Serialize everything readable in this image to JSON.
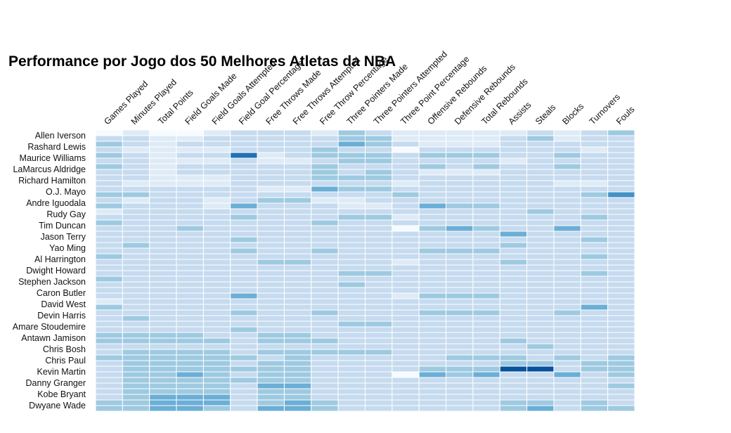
{
  "chart_data": {
    "type": "heatmap",
    "title": "Performance por Jogo dos 50 Melhores Atletas da NBA",
    "color_scale": [
      "#f7fbff",
      "#deebf7",
      "#c6dbef",
      "#9ecae1",
      "#6baed6",
      "#4292c6",
      "#2171b5",
      "#08519c"
    ],
    "columns": [
      "Games Played",
      "Minutes Played",
      "Total Points",
      "Field Goals Made",
      "Field Goals Attempted",
      "Field Goal Percentage",
      "Free Throws Made",
      "Free Throws Attempted",
      "Free Throw Percentage",
      "Three Pointers Made",
      "Three Pointers Attempted",
      "Three Point Percentage",
      "Offensive Rebounds",
      "Defensive Rebounds",
      "Total Rebounds",
      "Assists",
      "Steals",
      "Blocks",
      "Turnovers",
      "Fouls"
    ],
    "visible_row_labels": [
      "Allen Iverson",
      "Rashard Lewis",
      "Maurice Williams",
      "LaMarcus Aldridge",
      "Richard Hamilton",
      "O.J. Mayo",
      "Andre Iguodala",
      "Rudy Gay",
      "Tim Duncan",
      "Jason Terry",
      "Yao Ming",
      "Al Harrington",
      "Dwight Howard",
      "Stephen Jackson",
      "Caron Butler",
      "David West",
      "Devin Harris",
      "Amare Stoudemire",
      "Antawn Jamison",
      "Chris Bosh",
      "Chris Paul",
      "Kevin Martin",
      "Danny Granger",
      "Kobe Bryant",
      "Dwyane Wade"
    ],
    "row_count": 50,
    "values": [
      [
        1,
        2,
        1,
        1,
        2,
        3,
        3,
        3,
        2,
        4,
        3,
        2,
        2,
        2,
        2,
        2,
        3,
        2,
        3,
        4
      ],
      [
        3,
        3,
        2,
        2,
        3,
        3,
        3,
        3,
        3,
        4,
        4,
        2,
        2,
        2,
        2,
        3,
        4,
        2,
        3,
        3
      ],
      [
        4,
        3,
        2,
        3,
        3,
        3,
        3,
        3,
        3,
        5,
        4,
        3,
        2,
        2,
        2,
        3,
        3,
        3,
        3,
        3
      ],
      [
        3,
        2,
        2,
        2,
        2,
        3,
        3,
        3,
        4,
        3,
        3,
        1,
        3,
        3,
        3,
        3,
        3,
        3,
        2,
        3
      ],
      [
        4,
        3,
        2,
        3,
        3,
        7,
        2,
        3,
        4,
        4,
        4,
        3,
        4,
        4,
        4,
        3,
        3,
        4,
        3,
        3
      ],
      [
        3,
        3,
        2,
        2,
        2,
        3,
        2,
        2,
        3,
        4,
        4,
        3,
        3,
        3,
        3,
        2,
        3,
        3,
        3,
        3
      ],
      [
        4,
        3,
        2,
        3,
        3,
        3,
        3,
        3,
        4,
        3,
        3,
        3,
        4,
        3,
        4,
        3,
        3,
        4,
        3,
        3
      ],
      [
        3,
        3,
        2,
        3,
        3,
        3,
        3,
        3,
        4,
        3,
        4,
        3,
        2,
        2,
        2,
        3,
        3,
        3,
        3,
        3
      ],
      [
        3,
        3,
        2,
        2,
        2,
        3,
        3,
        3,
        4,
        4,
        4,
        3,
        3,
        3,
        3,
        3,
        3,
        3,
        3,
        3
      ],
      [
        3,
        2,
        2,
        2,
        2,
        3,
        3,
        3,
        3,
        3,
        3,
        2,
        3,
        3,
        3,
        3,
        3,
        2,
        2,
        3
      ],
      [
        3,
        3,
        3,
        3,
        3,
        3,
        2,
        2,
        5,
        4,
        4,
        3,
        3,
        3,
        3,
        3,
        3,
        3,
        3,
        3
      ],
      [
        4,
        4,
        3,
        3,
        3,
        3,
        3,
        3,
        3,
        3,
        3,
        4,
        3,
        3,
        3,
        3,
        3,
        3,
        4,
        6
      ],
      [
        3,
        2,
        3,
        3,
        2,
        3,
        4,
        4,
        2,
        2,
        3,
        3,
        3,
        3,
        3,
        3,
        3,
        3,
        3,
        3
      ],
      [
        4,
        3,
        3,
        3,
        2,
        5,
        3,
        3,
        3,
        2,
        2,
        3,
        5,
        4,
        4,
        3,
        3,
        3,
        3,
        3
      ],
      [
        2,
        3,
        3,
        3,
        3,
        3,
        3,
        3,
        3,
        3,
        3,
        3,
        3,
        3,
        3,
        3,
        4,
        3,
        3,
        3
      ],
      [
        3,
        3,
        3,
        3,
        3,
        4,
        3,
        3,
        3,
        4,
        4,
        2,
        3,
        3,
        3,
        3,
        3,
        3,
        4,
        3
      ],
      [
        4,
        3,
        3,
        3,
        3,
        3,
        3,
        3,
        4,
        3,
        3,
        3,
        3,
        3,
        3,
        3,
        3,
        3,
        3,
        3
      ],
      [
        3,
        3,
        3,
        4,
        3,
        3,
        3,
        3,
        3,
        3,
        3,
        1,
        4,
        5,
        4,
        3,
        3,
        5,
        3,
        3
      ],
      [
        3,
        3,
        3,
        3,
        3,
        3,
        3,
        3,
        3,
        3,
        3,
        3,
        3,
        3,
        3,
        5,
        3,
        3,
        3,
        3
      ],
      [
        3,
        3,
        3,
        3,
        3,
        4,
        3,
        3,
        3,
        3,
        3,
        3,
        3,
        3,
        3,
        3,
        3,
        3,
        4,
        3
      ],
      [
        3,
        4,
        3,
        3,
        3,
        3,
        3,
        3,
        3,
        3,
        3,
        3,
        3,
        3,
        3,
        4,
        3,
        3,
        3,
        3
      ],
      [
        3,
        3,
        3,
        3,
        3,
        4,
        3,
        3,
        4,
        3,
        3,
        3,
        4,
        4,
        4,
        3,
        3,
        3,
        3,
        3
      ],
      [
        4,
        3,
        3,
        3,
        3,
        3,
        3,
        3,
        3,
        3,
        3,
        3,
        3,
        3,
        3,
        3,
        3,
        3,
        4,
        3
      ],
      [
        3,
        3,
        3,
        3,
        3,
        3,
        4,
        4,
        3,
        3,
        3,
        2,
        3,
        3,
        3,
        4,
        3,
        3,
        3,
        3
      ],
      [
        3,
        3,
        3,
        3,
        3,
        3,
        3,
        3,
        3,
        3,
        3,
        3,
        3,
        3,
        3,
        3,
        3,
        3,
        3,
        3
      ],
      [
        3,
        3,
        3,
        3,
        3,
        3,
        3,
        3,
        3,
        4,
        4,
        3,
        3,
        3,
        3,
        3,
        3,
        3,
        4,
        3
      ],
      [
        4,
        3,
        3,
        3,
        3,
        3,
        3,
        3,
        3,
        3,
        3,
        3,
        3,
        3,
        3,
        3,
        3,
        3,
        3,
        3
      ],
      [
        3,
        3,
        3,
        3,
        3,
        3,
        3,
        3,
        3,
        4,
        3,
        3,
        3,
        3,
        3,
        3,
        3,
        3,
        3,
        3
      ],
      [
        3,
        3,
        3,
        3,
        3,
        3,
        3,
        3,
        3,
        3,
        3,
        3,
        3,
        3,
        3,
        3,
        3,
        3,
        3,
        3
      ],
      [
        3,
        3,
        3,
        3,
        3,
        5,
        3,
        3,
        3,
        3,
        3,
        2,
        4,
        4,
        4,
        3,
        3,
        3,
        3,
        3
      ],
      [
        2,
        3,
        3,
        3,
        3,
        3,
        3,
        3,
        3,
        3,
        3,
        3,
        3,
        3,
        3,
        3,
        3,
        3,
        3,
        3
      ],
      [
        4,
        3,
        3,
        3,
        3,
        3,
        3,
        3,
        3,
        3,
        3,
        3,
        3,
        3,
        3,
        3,
        3,
        3,
        5,
        3
      ],
      [
        3,
        3,
        3,
        3,
        3,
        4,
        3,
        3,
        4,
        3,
        3,
        3,
        4,
        4,
        4,
        3,
        3,
        4,
        3,
        3
      ],
      [
        3,
        4,
        3,
        3,
        3,
        3,
        3,
        3,
        3,
        3,
        3,
        3,
        3,
        3,
        3,
        3,
        3,
        3,
        3,
        3
      ],
      [
        3,
        3,
        3,
        3,
        3,
        3,
        3,
        3,
        3,
        4,
        4,
        3,
        3,
        3,
        3,
        3,
        3,
        3,
        3,
        3
      ],
      [
        3,
        3,
        3,
        3,
        3,
        4,
        3,
        3,
        3,
        3,
        3,
        3,
        3,
        3,
        3,
        3,
        3,
        3,
        3,
        3
      ],
      [
        4,
        4,
        4,
        4,
        3,
        3,
        4,
        4,
        3,
        3,
        3,
        3,
        3,
        3,
        3,
        3,
        3,
        3,
        3,
        3
      ],
      [
        4,
        4,
        4,
        4,
        4,
        3,
        4,
        4,
        4,
        3,
        3,
        3,
        3,
        3,
        3,
        4,
        3,
        3,
        3,
        3
      ],
      [
        3,
        3,
        3,
        3,
        3,
        3,
        3,
        3,
        3,
        3,
        3,
        3,
        3,
        3,
        3,
        3,
        4,
        3,
        3,
        3
      ],
      [
        3,
        4,
        4,
        4,
        4,
        3,
        4,
        4,
        4,
        4,
        4,
        3,
        3,
        3,
        3,
        3,
        3,
        3,
        3,
        3
      ],
      [
        4,
        4,
        4,
        4,
        4,
        4,
        3,
        4,
        3,
        3,
        3,
        3,
        3,
        4,
        4,
        4,
        3,
        4,
        3,
        4
      ],
      [
        3,
        4,
        4,
        4,
        4,
        3,
        4,
        4,
        3,
        3,
        3,
        3,
        3,
        3,
        3,
        4,
        4,
        3,
        4,
        4
      ],
      [
        3,
        4,
        4,
        4,
        4,
        4,
        4,
        4,
        3,
        3,
        3,
        3,
        4,
        4,
        4,
        8,
        8,
        3,
        4,
        4
      ],
      [
        3,
        4,
        4,
        5,
        4,
        3,
        4,
        4,
        3,
        3,
        3,
        1,
        5,
        4,
        5,
        3,
        3,
        5,
        3,
        4
      ],
      [
        3,
        4,
        4,
        4,
        4,
        4,
        4,
        4,
        3,
        3,
        3,
        3,
        3,
        3,
        3,
        3,
        3,
        3,
        3,
        3
      ],
      [
        3,
        4,
        4,
        4,
        4,
        3,
        5,
        5,
        3,
        3,
        3,
        3,
        3,
        3,
        3,
        3,
        3,
        3,
        3,
        4
      ],
      [
        3,
        4,
        4,
        4,
        4,
        3,
        4,
        4,
        3,
        3,
        3,
        3,
        3,
        3,
        3,
        3,
        3,
        3,
        3,
        3
      ],
      [
        3,
        4,
        5,
        5,
        5,
        3,
        4,
        4,
        3,
        3,
        3,
        3,
        3,
        3,
        3,
        3,
        3,
        3,
        3,
        3
      ],
      [
        4,
        4,
        5,
        5,
        5,
        3,
        4,
        5,
        4,
        3,
        3,
        3,
        3,
        3,
        3,
        4,
        4,
        3,
        4,
        3
      ],
      [
        4,
        4,
        5,
        5,
        4,
        3,
        5,
        5,
        4,
        3,
        3,
        3,
        3,
        3,
        3,
        4,
        5,
        3,
        4,
        4
      ]
    ]
  }
}
